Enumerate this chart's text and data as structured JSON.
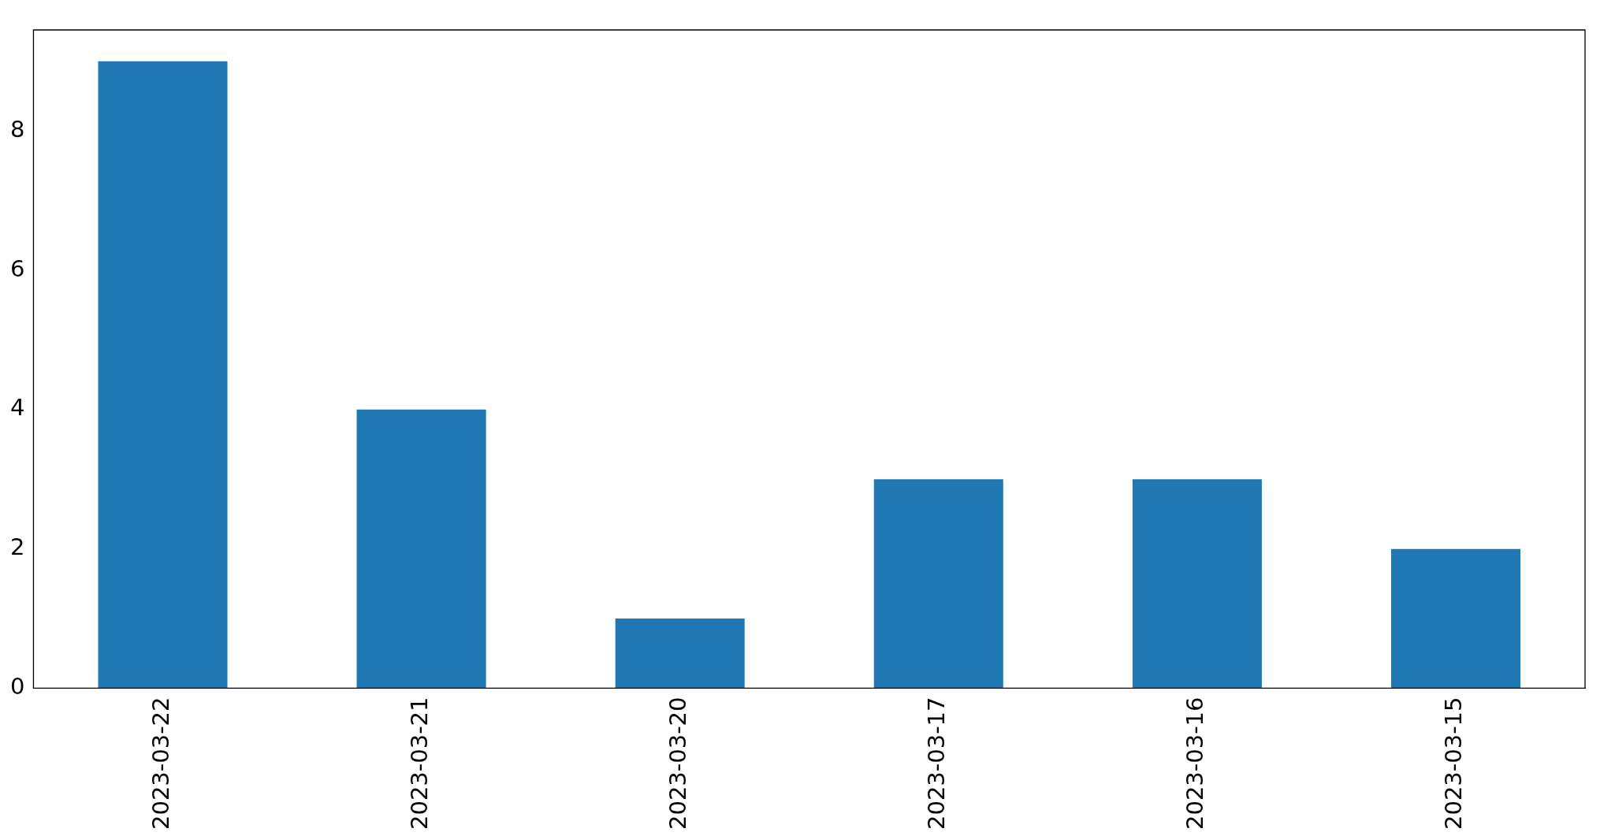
{
  "chart_data": {
    "type": "bar",
    "categories": [
      "2023-03-22",
      "2023-03-21",
      "2023-03-20",
      "2023-03-17",
      "2023-03-16",
      "2023-03-15"
    ],
    "values": [
      9,
      4,
      1,
      3,
      3,
      2
    ],
    "color": "#1f77b4",
    "ylim": [
      0,
      9.45
    ],
    "yticks": [
      0,
      2,
      4,
      6,
      8
    ],
    "grid": false,
    "legend": false
  }
}
